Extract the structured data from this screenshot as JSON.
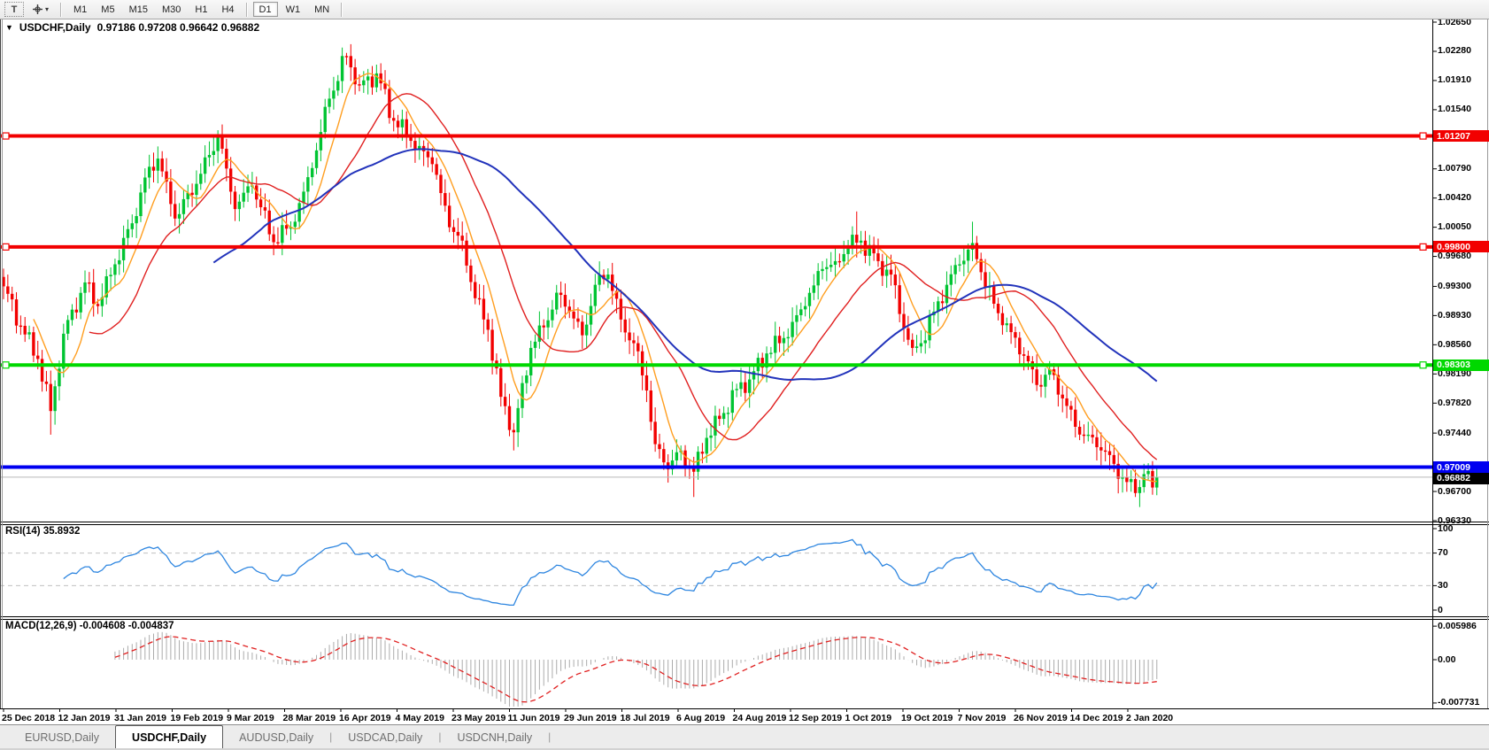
{
  "toolbar": {
    "text_tool_label": "T",
    "timeframe_groups": [
      [
        "M1",
        "M5",
        "M15",
        "M30",
        "H1",
        "H4"
      ],
      [
        "D1",
        "W1",
        "MN"
      ]
    ],
    "active_timeframe": "D1"
  },
  "chart": {
    "title": {
      "symbol": "USDCHF,Daily",
      "open": "0.97186",
      "high": "0.97208",
      "low": "0.96642",
      "close": "0.96882",
      "ohlc": "0.97186 0.97208 0.96642 0.96882"
    },
    "candle_colors": {
      "up": "#00c432",
      "down": "#f20000"
    },
    "moving_averages": [
      {
        "name": "fast-ma",
        "period": 8,
        "color": "#ff9e20",
        "width": 1.4
      },
      {
        "name": "mid-ma",
        "period": 21,
        "color": "#e02020",
        "width": 1.4
      },
      {
        "name": "slow-ma",
        "period": 50,
        "color": "#2233bb",
        "width": 2
      }
    ],
    "hlines": [
      {
        "id": "resistance-1",
        "price": 1.01207,
        "label": "1.01207",
        "color": "#f20000",
        "thickness": 4,
        "anchors": true
      },
      {
        "id": "resistance-2",
        "price": 0.998,
        "label": "0.99800",
        "color": "#f20000",
        "thickness": 4,
        "anchors": true
      },
      {
        "id": "support-mid",
        "price": 0.98303,
        "label": "0.98303",
        "color": "#00d800",
        "thickness": 4,
        "anchors": true
      },
      {
        "id": "support-low",
        "price": 0.97009,
        "label": "0.97009",
        "color": "#0000f0",
        "thickness": 4,
        "anchors": false
      }
    ],
    "current_price": {
      "price": 0.96882,
      "label": "0.96882",
      "line_color": "#b8b8b8",
      "label_bg": "#000000",
      "label_fg": "#ffffff"
    }
  },
  "rsi": {
    "label": "RSI(14) 35.8932",
    "period": 14,
    "value": "35.8932",
    "levels": [
      70,
      30
    ],
    "scale_labels": [
      {
        "label": "100",
        "value": 100
      },
      {
        "label": "70",
        "value": 70
      },
      {
        "label": "30",
        "value": 30
      },
      {
        "label": "0",
        "value": 0
      }
    ],
    "line_color": "#2e86e0"
  },
  "macd": {
    "label": "MACD(12,26,9) -0.004608 -0.004837",
    "fast": 12,
    "slow": 26,
    "signal": 9,
    "macd_value": "-0.004608",
    "signal_value": "-0.004837",
    "scale_labels": [
      {
        "label": "0.005986",
        "value": 0.005986
      },
      {
        "label": "0.00",
        "value": 0
      },
      {
        "label": "-0.007731",
        "value": -0.007731
      }
    ],
    "hist_color": "#ababab",
    "signal_color": "#e02020"
  },
  "tabs": [
    {
      "label": "EURUSD,Daily",
      "active": false
    },
    {
      "label": "USDCHF,Daily",
      "active": true
    },
    {
      "label": "AUDUSD,Daily",
      "active": false
    },
    {
      "label": "USDCAD,Daily",
      "active": false
    },
    {
      "label": "USDCNH,Daily",
      "active": false
    }
  ],
  "chart_data": {
    "type": "candlestick",
    "symbol": "USDCHF",
    "timeframe": "Daily",
    "bars": 270,
    "price_axis_ticks": [
      "1.02650",
      "1.02280",
      "1.01910",
      "1.01540",
      "1.00790",
      "1.00420",
      "1.00050",
      "0.99680",
      "0.99300",
      "0.98930",
      "0.98560",
      "0.98190",
      "0.97820",
      "0.97440",
      "0.96700",
      "0.96330"
    ],
    "x_axis_labels": [
      "25 Dec 2018",
      "12 Jan 2019",
      "31 Jan 2019",
      "19 Feb 2019",
      "9 Mar 2019",
      "28 Mar 2019",
      "16 Apr 2019",
      "4 May 2019",
      "23 May 2019",
      "11 Jun 2019",
      "29 Jun 2019",
      "18 Jul 2019",
      "6 Aug 2019",
      "24 Aug 2019",
      "12 Sep 2019",
      "1 Oct 2019",
      "19 Oct 2019",
      "7 Nov 2019",
      "26 Nov 2019",
      "14 Dec 2019",
      "2 Jan 2020"
    ],
    "close_waypoints": [
      [
        0,
        0.993
      ],
      [
        4,
        0.988
      ],
      [
        8,
        0.9838
      ],
      [
        11,
        0.9772
      ],
      [
        14,
        0.987
      ],
      [
        19,
        0.9935
      ],
      [
        22,
        0.9905
      ],
      [
        26,
        0.9958
      ],
      [
        30,
        1.001
      ],
      [
        33,
        1.0068
      ],
      [
        36,
        1.0092
      ],
      [
        40,
        1.0016
      ],
      [
        45,
        1.006
      ],
      [
        50,
        1.012
      ],
      [
        54,
        1.0028
      ],
      [
        58,
        1.0058
      ],
      [
        63,
        0.9986
      ],
      [
        68,
        1.0012
      ],
      [
        72,
        1.008
      ],
      [
        76,
        1.0168
      ],
      [
        80,
        1.0222
      ],
      [
        83,
        1.0185
      ],
      [
        87,
        1.02
      ],
      [
        91,
        1.014
      ],
      [
        94,
        1.0122
      ],
      [
        97,
        1.0108
      ],
      [
        100,
        1.0085
      ],
      [
        104,
        1.0005
      ],
      [
        107,
        0.9988
      ],
      [
        110,
        0.9915
      ],
      [
        113,
        0.9875
      ],
      [
        116,
        0.979
      ],
      [
        119,
        0.9745
      ],
      [
        123,
        0.9852
      ],
      [
        126,
        0.9878
      ],
      [
        129,
        0.9922
      ],
      [
        132,
        0.9898
      ],
      [
        135,
        0.9868
      ],
      [
        138,
        0.9932
      ],
      [
        141,
        0.9945
      ],
      [
        144,
        0.9888
      ],
      [
        147,
        0.9858
      ],
      [
        150,
        0.9798
      ],
      [
        152,
        0.973
      ],
      [
        155,
        0.9698
      ],
      [
        158,
        0.9722
      ],
      [
        161,
        0.9695
      ],
      [
        164,
        0.9738
      ],
      [
        167,
        0.9762
      ],
      [
        171,
        0.98
      ],
      [
        174,
        0.9812
      ],
      [
        178,
        0.9845
      ],
      [
        181,
        0.9858
      ],
      [
        184,
        0.9885
      ],
      [
        187,
        0.9905
      ],
      [
        191,
        0.9952
      ],
      [
        194,
        0.9962
      ],
      [
        197,
        0.998
      ],
      [
        200,
        0.9988
      ],
      [
        204,
        0.9962
      ],
      [
        207,
        0.9945
      ],
      [
        209,
        0.9895
      ],
      [
        212,
        0.9852
      ],
      [
        214,
        0.9858
      ],
      [
        217,
        0.9898
      ],
      [
        220,
        0.9932
      ],
      [
        223,
        0.9958
      ],
      [
        226,
        0.9985
      ],
      [
        228,
        0.9948
      ],
      [
        231,
        0.9908
      ],
      [
        235,
        0.9872
      ],
      [
        238,
        0.9842
      ],
      [
        241,
        0.9805
      ],
      [
        244,
        0.9825
      ],
      [
        247,
        0.9788
      ],
      [
        250,
        0.9752
      ],
      [
        253,
        0.9742
      ],
      [
        256,
        0.9722
      ],
      [
        259,
        0.9705
      ],
      [
        262,
        0.9682
      ],
      [
        264,
        0.9668
      ],
      [
        266,
        0.9692
      ],
      [
        268,
        0.9675
      ],
      [
        269,
        0.96882
      ]
    ],
    "wick_overrides": [
      [
        11,
        "low",
        0.9742
      ],
      [
        50,
        "high",
        1.0128
      ],
      [
        80,
        "high",
        1.0226
      ],
      [
        119,
        "low",
        0.9722
      ],
      [
        161,
        "low",
        0.9663
      ],
      [
        199,
        "high",
        1.0025
      ],
      [
        226,
        "high",
        1.0012
      ],
      [
        264,
        "low",
        0.9663
      ]
    ]
  }
}
